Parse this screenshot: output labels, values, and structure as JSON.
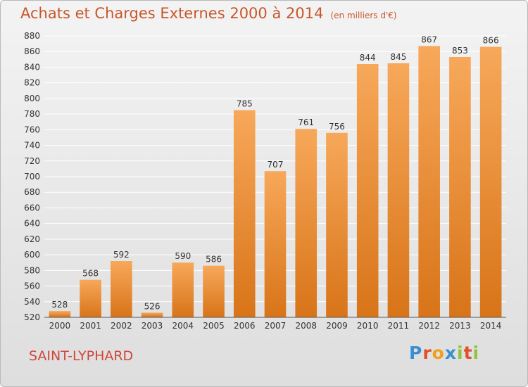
{
  "header": {
    "title": "Achats et Charges Externes 2000 à 2014",
    "unit": "(en milliers d'€)"
  },
  "commune": "SAINT-LYPHARD",
  "logo": {
    "text": "Proxiti",
    "letters": [
      {
        "ch": "P",
        "color": "#3a8fd0"
      },
      {
        "ch": "r",
        "color": "#e2502a"
      },
      {
        "ch": "o",
        "color": "#f0a020"
      },
      {
        "ch": "x",
        "color": "#3a8fd0"
      },
      {
        "ch": "i",
        "color": "#8bc53f"
      },
      {
        "ch": "t",
        "color": "#e2502a"
      },
      {
        "ch": "i",
        "color": "#8bc53f"
      }
    ]
  },
  "colors": {
    "bar_top": "#f7a85a",
    "bar_bottom": "#d87418",
    "title": "#c8572a",
    "commune": "#d0453a",
    "grid": "#ffffff",
    "axis_text": "#333333"
  },
  "chart_data": {
    "type": "bar",
    "title": "Achats et Charges Externes 2000 à 2014",
    "subtitle": "(en milliers d'€)",
    "xlabel": "",
    "ylabel": "",
    "categories": [
      "2000",
      "2001",
      "2002",
      "2003",
      "2004",
      "2005",
      "2006",
      "2007",
      "2008",
      "2009",
      "2010",
      "2011",
      "2012",
      "2013",
      "2014"
    ],
    "values": [
      528,
      568,
      592,
      526,
      590,
      586,
      785,
      707,
      761,
      756,
      844,
      845,
      867,
      853,
      866
    ],
    "ylim": [
      520,
      880
    ],
    "yticks": [
      520,
      540,
      560,
      580,
      600,
      620,
      640,
      660,
      680,
      700,
      720,
      740,
      760,
      780,
      800,
      820,
      840,
      860,
      880
    ],
    "grid": true,
    "legend": "none"
  }
}
